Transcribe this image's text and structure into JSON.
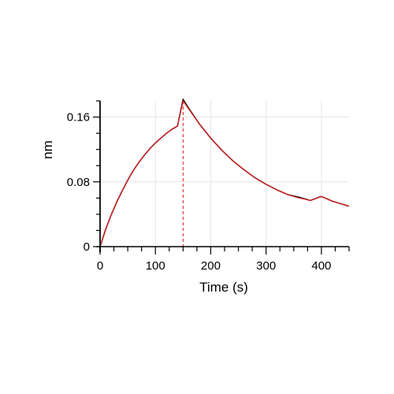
{
  "chart_data": {
    "type": "line",
    "title": "",
    "xlabel": "Time (s)",
    "ylabel": "nm",
    "xlim": [
      0,
      450
    ],
    "ylim": [
      0,
      0.18
    ],
    "x_ticks": [
      0,
      100,
      200,
      300,
      400
    ],
    "x_tick_labels": [
      "0",
      "100",
      "200",
      "300",
      "400"
    ],
    "y_ticks": [
      0,
      0.08,
      0.16
    ],
    "y_tick_labels": [
      "0",
      "0.08",
      "0.16"
    ],
    "grid": true,
    "legend": "none",
    "markers": [
      {
        "x": 150,
        "style": "dashed",
        "color": "#d7191c"
      }
    ],
    "series": [
      {
        "color": "#231f20",
        "x": [
          0,
          10,
          20,
          30,
          40,
          50,
          60,
          70,
          80,
          90,
          100,
          110,
          120,
          130,
          140,
          150,
          160,
          180,
          200,
          220,
          240,
          260,
          280,
          300,
          320,
          340,
          360,
          380,
          400,
          420,
          440,
          450
        ],
        "y": [
          0.0,
          0.021,
          0.039,
          0.055,
          0.069,
          0.082,
          0.094,
          0.104,
          0.113,
          0.121,
          0.128,
          0.134,
          0.14,
          0.145,
          0.149,
          0.182,
          0.171,
          0.151,
          0.134,
          0.119,
          0.106,
          0.095,
          0.085,
          0.077,
          0.07,
          0.064,
          0.061,
          0.057,
          0.062,
          0.056,
          0.052,
          0.05
        ]
      },
      {
        "color": "#e41a1c",
        "x": [
          0,
          10,
          20,
          30,
          40,
          50,
          60,
          70,
          80,
          90,
          100,
          110,
          120,
          130,
          140,
          150,
          160,
          180,
          200,
          220,
          240,
          260,
          280,
          300,
          320,
          340,
          360,
          380,
          400,
          420,
          440,
          450
        ],
        "y": [
          0.0,
          0.021,
          0.039,
          0.055,
          0.069,
          0.082,
          0.094,
          0.104,
          0.113,
          0.121,
          0.128,
          0.134,
          0.14,
          0.145,
          0.149,
          0.18,
          0.17,
          0.151,
          0.134,
          0.119,
          0.106,
          0.095,
          0.085,
          0.077,
          0.07,
          0.064,
          0.06,
          0.057,
          0.062,
          0.056,
          0.052,
          0.05
        ]
      }
    ]
  }
}
